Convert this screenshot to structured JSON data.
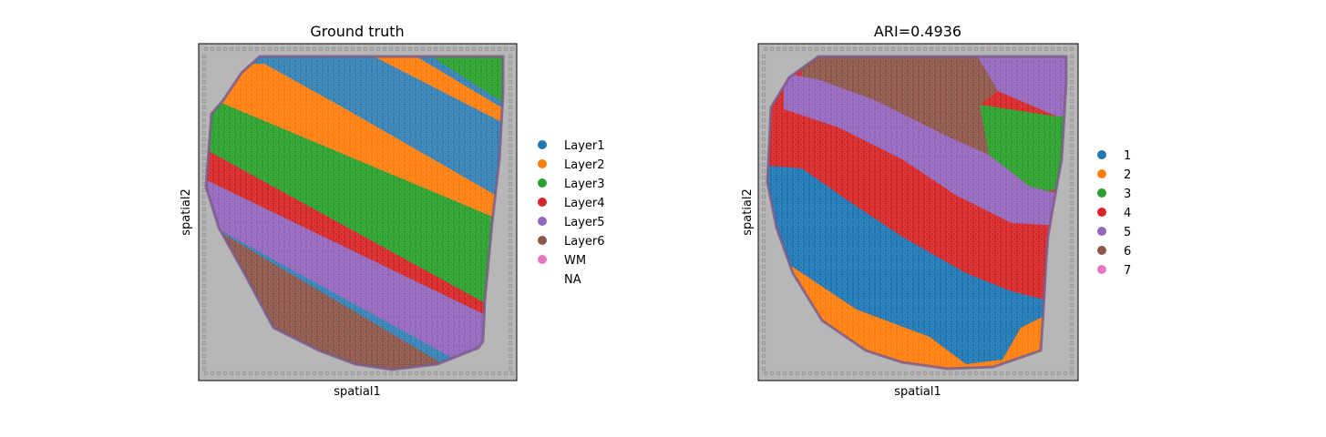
{
  "chart_data": [
    {
      "type": "scatter",
      "title": "Ground truth",
      "xlabel": "spatial1",
      "ylabel": "spatial2",
      "legend_position": "right",
      "legend": [
        {
          "label": "Layer1",
          "color": "#1f77b4"
        },
        {
          "label": "Layer2",
          "color": "#ff7f0e"
        },
        {
          "label": "Layer3",
          "color": "#2ca02c"
        },
        {
          "label": "Layer4",
          "color": "#d62728"
        },
        {
          "label": "Layer5",
          "color": "#9467bd"
        },
        {
          "label": "Layer6",
          "color": "#8c564b"
        },
        {
          "label": "WM",
          "color": "#e377c2"
        },
        {
          "label": "NA",
          "color": ""
        }
      ]
    },
    {
      "type": "scatter",
      "title": "ARI=0.4936",
      "xlabel": "spatial1",
      "ylabel": "spatial2",
      "legend_position": "right",
      "legend": [
        {
          "label": "1",
          "color": "#1f77b4"
        },
        {
          "label": "2",
          "color": "#ff7f0e"
        },
        {
          "label": "3",
          "color": "#2ca02c"
        },
        {
          "label": "4",
          "color": "#d62728"
        },
        {
          "label": "5",
          "color": "#9467bd"
        },
        {
          "label": "6",
          "color": "#8c564b"
        },
        {
          "label": "7",
          "color": "#e377c2"
        }
      ]
    }
  ],
  "colors": {
    "tissue_background": "#a9a9a9",
    "tissue_edge": "#7a5a8a",
    "spot_outline": "#8c8c8c"
  }
}
